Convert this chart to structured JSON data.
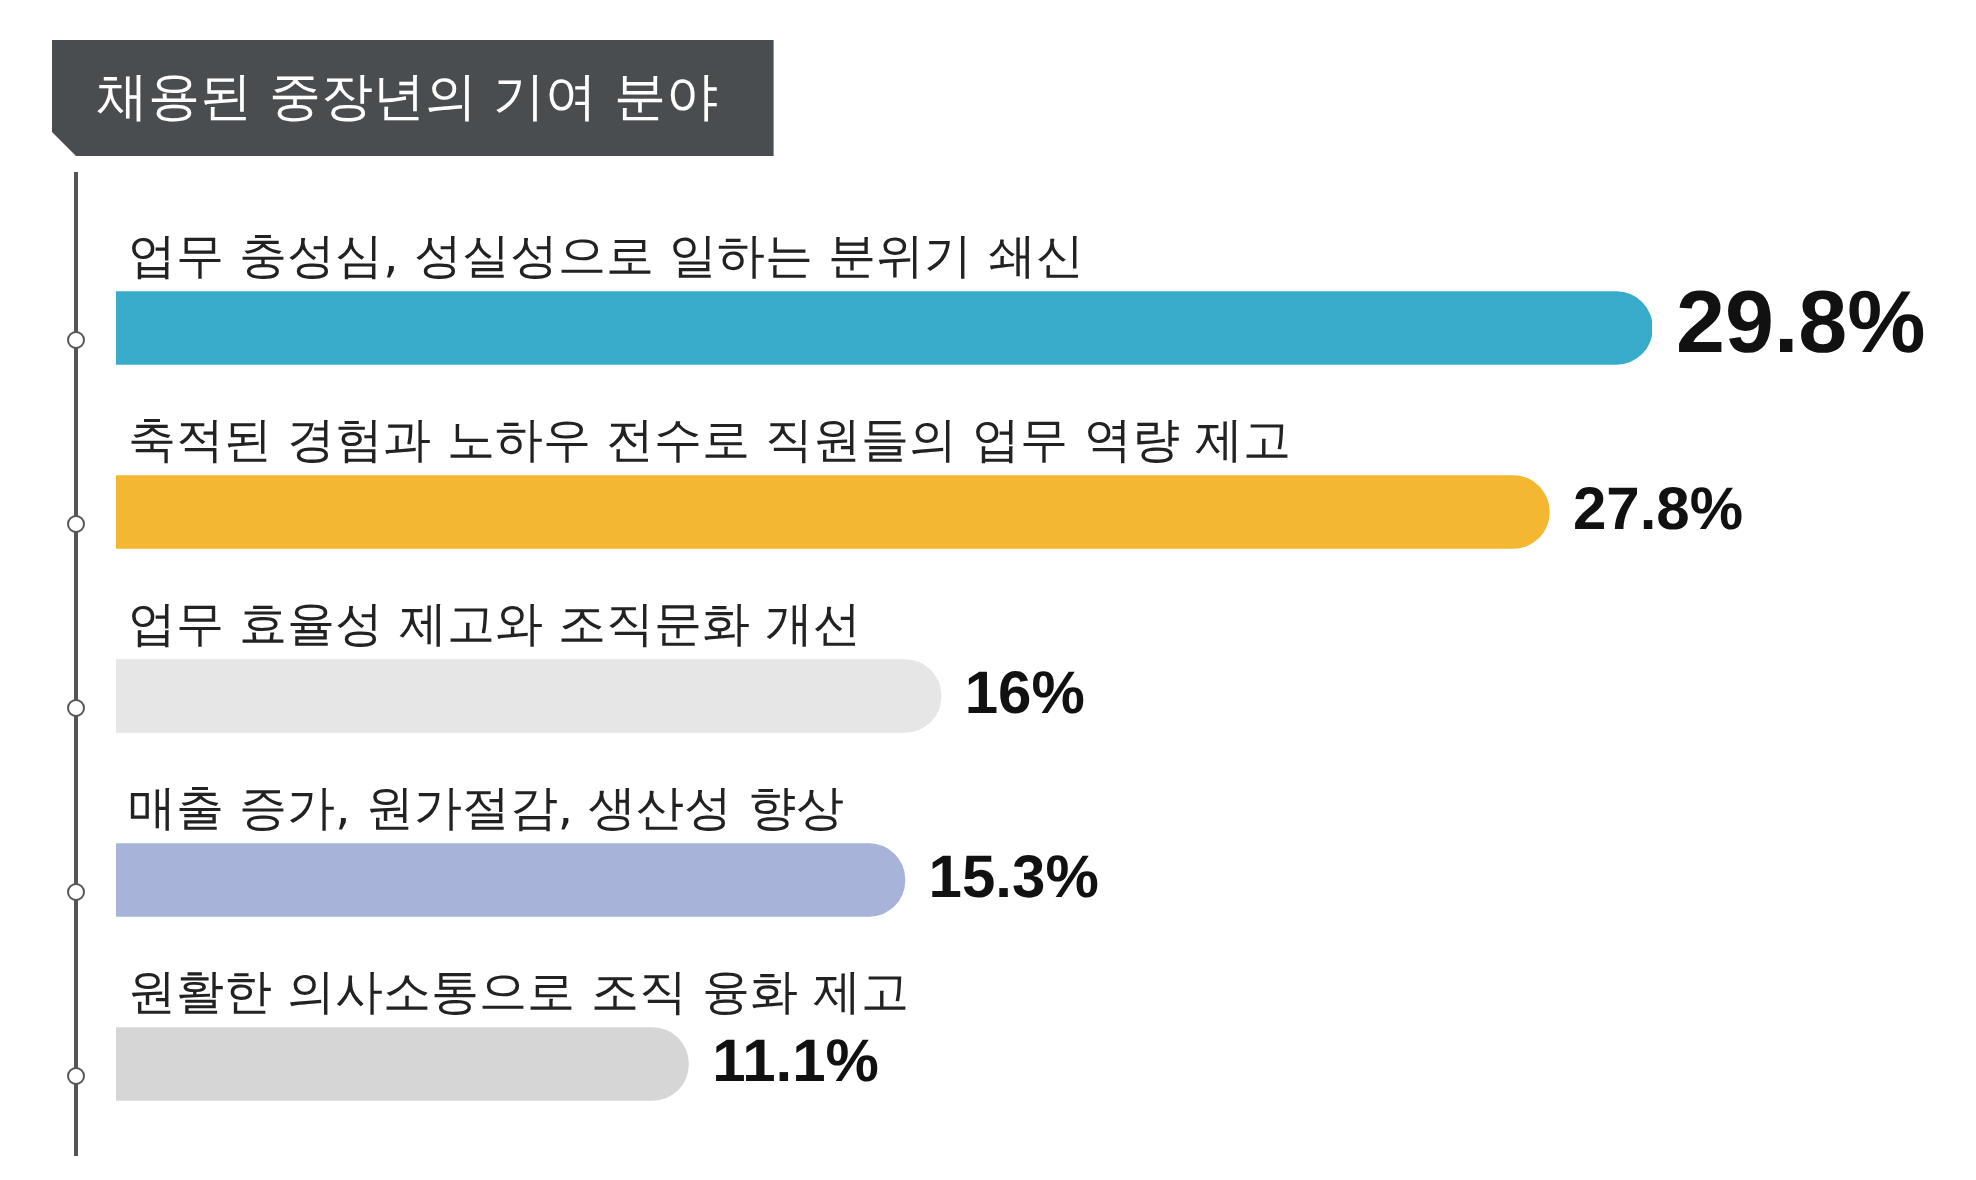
{
  "chart_data": {
    "type": "bar",
    "orientation": "horizontal",
    "title": "채용된 중장년의 기여 분야",
    "categories": [
      "업무 충성심, 성실성으로 일하는 분위기 쇄신",
      "축적된 경험과 노하우 전수로 직원들의 업무 역량 제고",
      "업무 효율성 제고와 조직문화 개선",
      "매출 증가, 원가절감, 생산성 향상",
      "원활한 의사소통으로 조직 융화 제고"
    ],
    "values": [
      29.8,
      27.8,
      16,
      15.3,
      11.1
    ],
    "colors": [
      "#3aaccb",
      "#f4b731",
      "#e6e6e6",
      "#a8b3d9",
      "#d6d6d6"
    ],
    "value_labels": [
      "29.8%",
      "27.8%",
      "16%",
      "15.3%",
      "11.1%"
    ],
    "tick_labels": false
  }
}
